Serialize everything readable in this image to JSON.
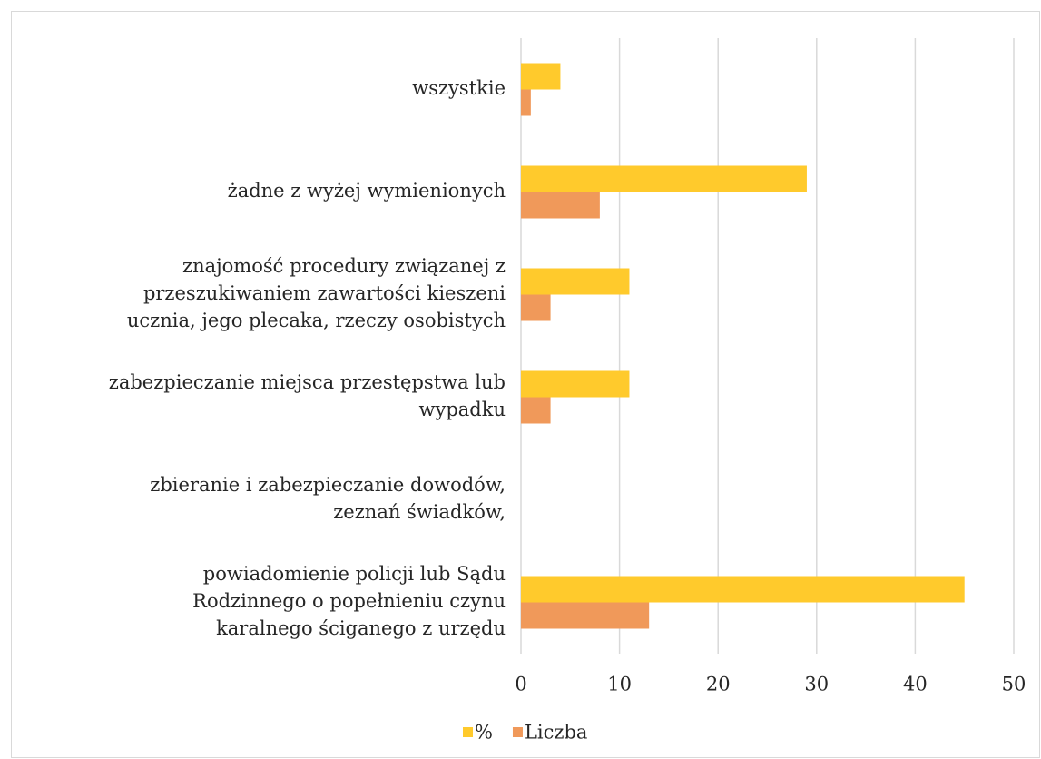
{
  "chart_data": {
    "type": "bar",
    "orientation": "horizontal",
    "categories": [
      [
        "wszystkie"
      ],
      [
        "żadne z wyżej wymienionych"
      ],
      [
        "znajomość procedury związanej z",
        "przeszukiwaniem zawartości kieszeni",
        "ucznia, jego plecaka, rzeczy osobistych"
      ],
      [
        "zabezpieczanie miejsca przestępstwa lub",
        "wypadku"
      ],
      [
        "zbieranie i zabezpieczanie dowodów,",
        "zeznań  świadków,"
      ],
      [
        "powiadomienie policji lub Sądu",
        "Rodzinnego o popełnieniu czynu",
        "karalnego ściganego z urzędu"
      ]
    ],
    "series": [
      {
        "name": "%",
        "color": "#ffca2c",
        "values": [
          4,
          29,
          11,
          11,
          0,
          45
        ]
      },
      {
        "name": "Liczba",
        "color": "#f0995a",
        "values": [
          1,
          8,
          3,
          3,
          0,
          13
        ]
      }
    ],
    "xlim": [
      0,
      50
    ],
    "xticks": [
      0,
      10,
      20,
      30,
      40,
      50
    ],
    "grid": true,
    "legend": "bottom"
  }
}
